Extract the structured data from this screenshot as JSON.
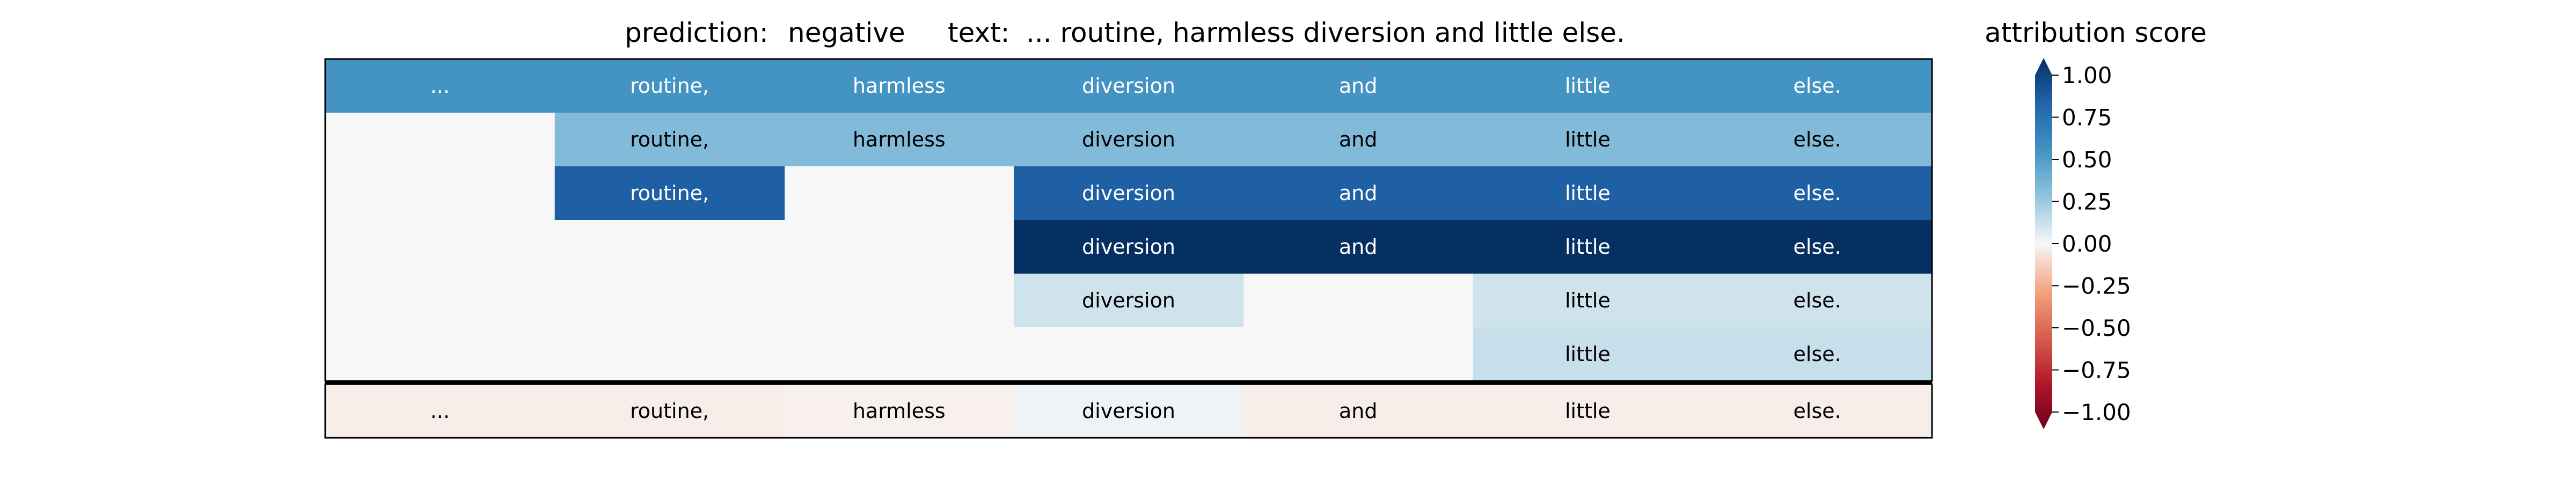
{
  "header": {
    "prediction_label": "prediction:",
    "prediction_value": "negative",
    "text_label": "text:",
    "text_value": "... routine, harmless diversion and little else."
  },
  "colorbar": {
    "title": "attribution score",
    "ticks": [
      "1.00",
      "0.75",
      "0.50",
      "0.25",
      "0.00",
      "−0.25",
      "−0.50",
      "−0.75",
      "−1.00"
    ]
  },
  "chart_data": {
    "type": "heatmap",
    "title": "prediction:  negative     text:  ... routine, harmless diversion and little else.",
    "tokens": [
      "...",
      "routine,",
      "harmless",
      "diversion",
      "and",
      "little",
      "else."
    ],
    "colorbar_label": "attribution score",
    "colorbar_range": [
      -1.0,
      1.0
    ],
    "colormap": "RdBu",
    "rows": [
      [
        0.5,
        0.5,
        0.5,
        0.5,
        0.5,
        0.5,
        0.5
      ],
      [
        null,
        0.3,
        0.3,
        0.3,
        0.3,
        0.3,
        0.3
      ],
      [
        null,
        0.78,
        null,
        0.78,
        0.78,
        0.78,
        0.78
      ],
      [
        null,
        null,
        null,
        1.0,
        1.0,
        1.0,
        1.0
      ],
      [
        null,
        null,
        null,
        0.1,
        null,
        0.1,
        0.1
      ],
      [
        null,
        null,
        null,
        null,
        null,
        0.12,
        0.12
      ]
    ],
    "background_value": 0.0,
    "summary_row": [
      -0.03,
      -0.03,
      -0.02,
      0.02,
      -0.03,
      -0.03,
      -0.03
    ]
  }
}
